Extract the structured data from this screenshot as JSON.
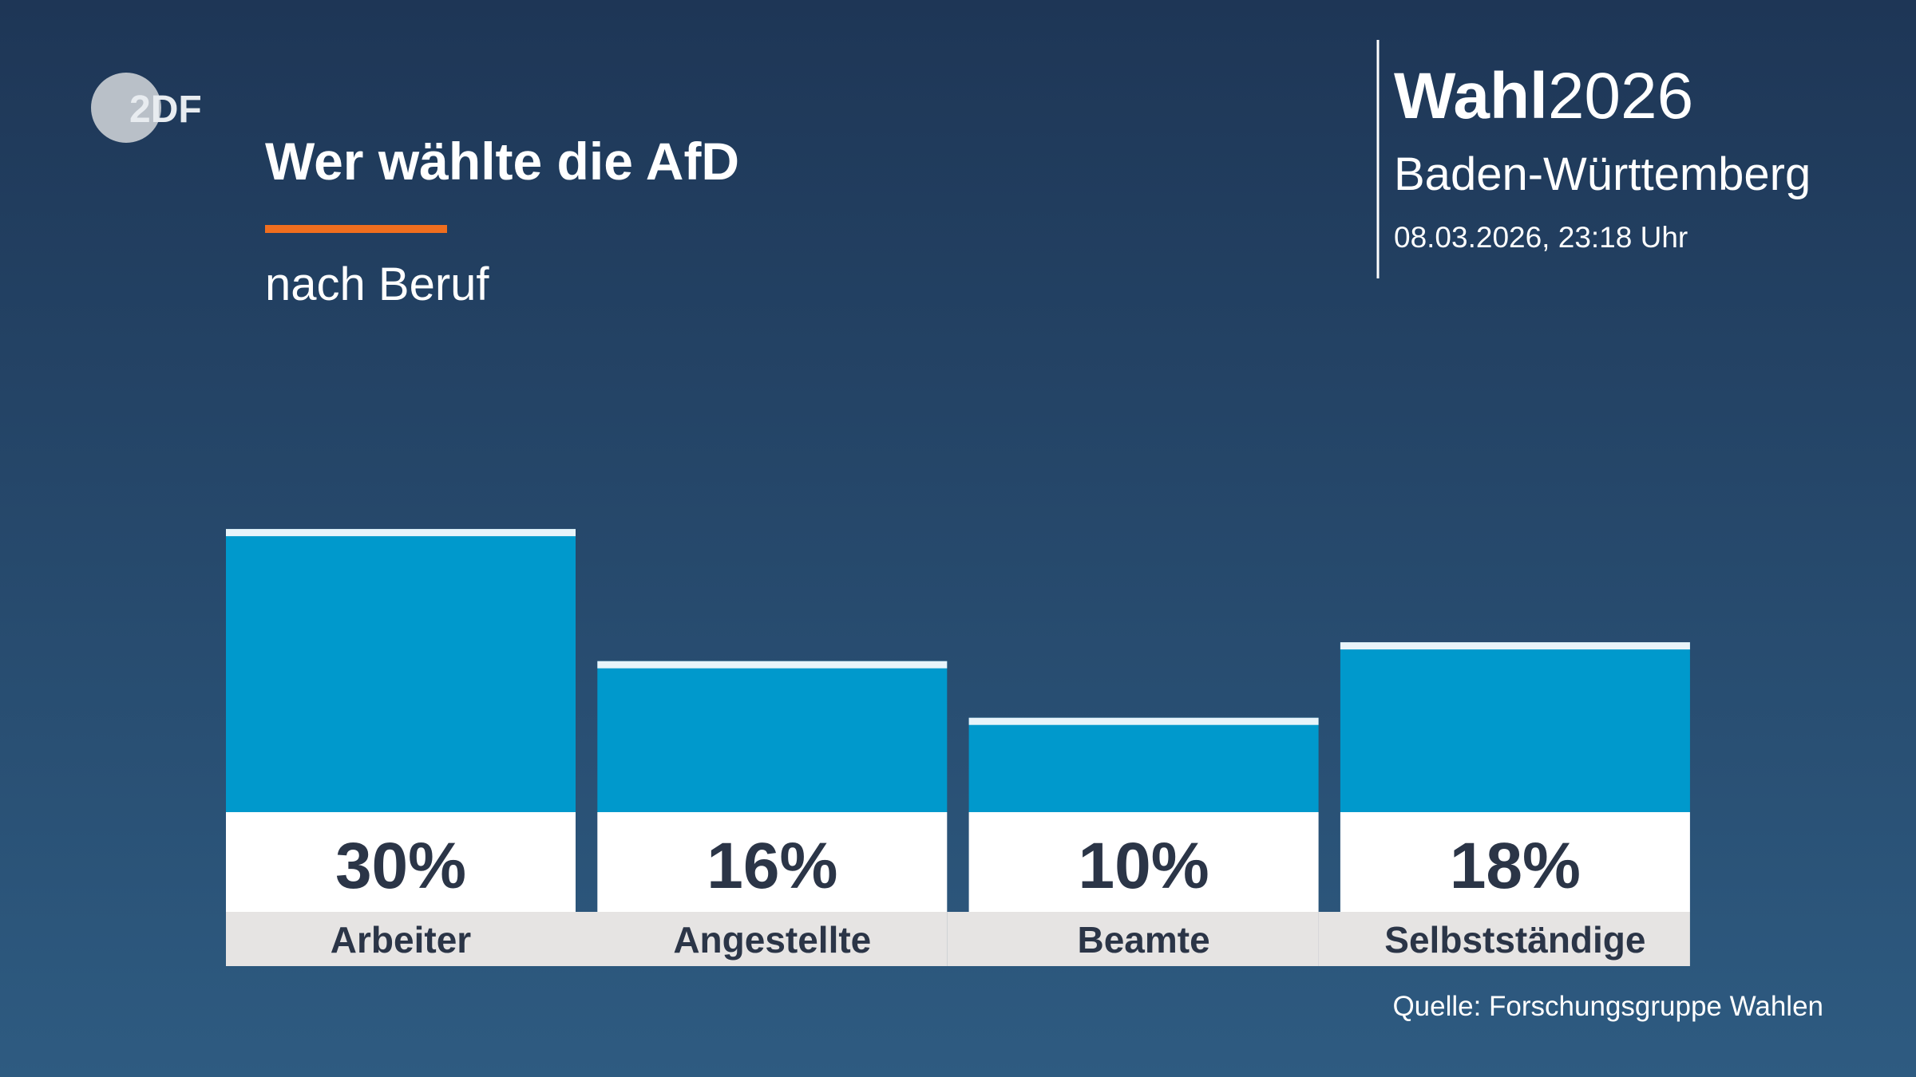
{
  "logo": "2DF",
  "header": {
    "brand_bold": "Wahl",
    "brand_year": "2026",
    "region": "Baden-Württemberg",
    "timestamp": "08.03.2026, 23:18 Uhr"
  },
  "chart_data": {
    "type": "bar",
    "title": "Wer wählte die AfD",
    "subtitle": "nach Beruf",
    "categories": [
      "Arbeiter",
      "Angestellte",
      "Beamte",
      "Selbstständige"
    ],
    "values": [
      30,
      16,
      10,
      18
    ],
    "value_labels": [
      "30%",
      "16%",
      "10%",
      "18%"
    ],
    "color": "#0099cc",
    "source": "Quelle: Forschungsgruppe Wahlen"
  }
}
